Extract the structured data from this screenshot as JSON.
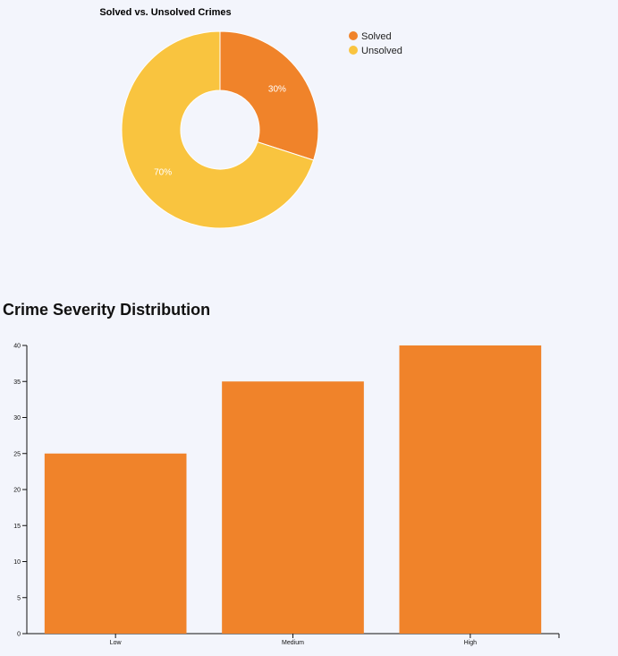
{
  "donut_chart": {
    "title": "Solved vs. Unsolved Crimes",
    "legend": [
      {
        "label": "Solved",
        "color": "#f0832a"
      },
      {
        "label": "Unsolved",
        "color": "#f9c43f"
      }
    ]
  },
  "bar_section": {
    "heading": "Crime Severity Distribution",
    "bar_color": "#f0832a"
  },
  "chart_data": [
    {
      "type": "pie",
      "title": "Solved vs. Unsolved Crimes",
      "categories": [
        "Solved",
        "Unsolved"
      ],
      "values": [
        30,
        70
      ],
      "labels": [
        "30%",
        "70%"
      ],
      "colors": [
        "#f0832a",
        "#f9c43f"
      ],
      "donut": true,
      "legend_position": "right"
    },
    {
      "type": "bar",
      "title": "Crime Severity Distribution",
      "categories": [
        "Low",
        "Medium",
        "High"
      ],
      "values": [
        25,
        35,
        40
      ],
      "ylim": [
        0,
        40
      ],
      "yticks": [
        0,
        5,
        10,
        15,
        20,
        25,
        30,
        35,
        40
      ],
      "xlabel": "",
      "ylabel": "",
      "grid": false
    }
  ]
}
